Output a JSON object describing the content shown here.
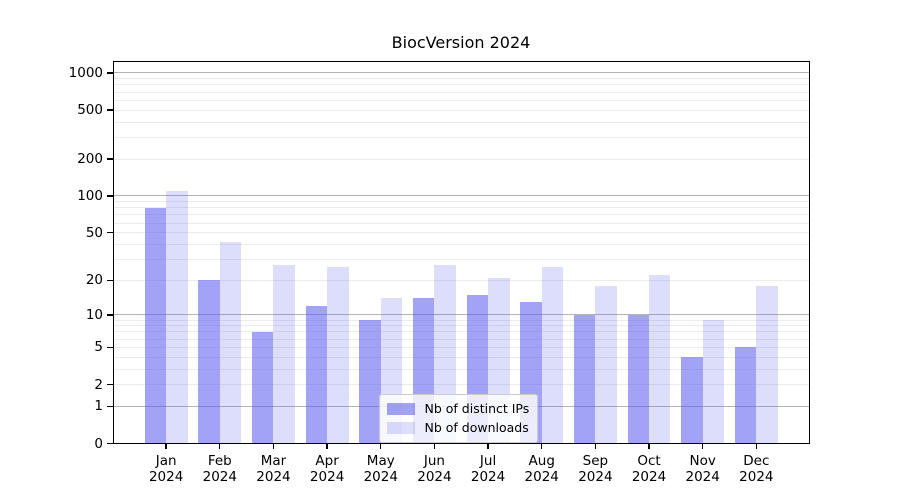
{
  "figure": {
    "background": "#ffffff"
  },
  "chart_data": {
    "type": "bar",
    "title": "BiocVersion 2024",
    "xlabel": "",
    "ylabel": "",
    "categories": [
      "Jan 2024",
      "Feb 2024",
      "Mar 2024",
      "Apr 2024",
      "May 2024",
      "Jun 2024",
      "Jul 2024",
      "Aug 2024",
      "Sep 2024",
      "Oct 2024",
      "Nov 2024",
      "Dec 2024"
    ],
    "series": [
      {
        "name": "Nb of distinct IPs",
        "color": "#a9a9f6",
        "base_color": "#5555ee",
        "alpha": 0.55,
        "values": [
          79,
          20,
          7,
          12,
          9,
          14,
          15,
          13,
          10,
          10,
          4,
          5
        ]
      },
      {
        "name": "Nb of downloads",
        "color": "#dcdcf9",
        "base_color": "#5555ee",
        "alpha": 0.2,
        "values": [
          110,
          42,
          27,
          26,
          14,
          27,
          21,
          26,
          18,
          22,
          9,
          18
        ]
      }
    ],
    "yscale": "log1p",
    "ylim": [
      0,
      1250
    ],
    "y_ticks": [
      1000,
      500,
      200,
      100,
      50,
      20,
      10,
      5,
      2,
      1,
      0
    ],
    "y_major_gridlines": [
      1,
      10,
      100,
      1000
    ],
    "bar_width_frac": 0.4,
    "grid": {
      "major_color": "#b4b4b4",
      "minor_color": "#ebebeb",
      "minor_on": true
    },
    "legend": {
      "position": "lower-center",
      "entries": [
        "Nb of distinct IPs",
        "Nb of downloads"
      ]
    }
  }
}
